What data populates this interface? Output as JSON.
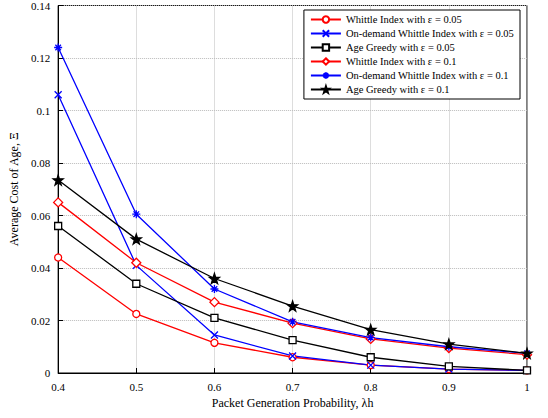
{
  "chart_data": {
    "type": "line",
    "x_label": "Packet Generation Probability, λh",
    "y_label": "Average Cost of Age, Ξ",
    "x": [
      0.4,
      0.5,
      0.6,
      0.7,
      0.8,
      0.9,
      1
    ],
    "xlim": [
      0.4,
      1
    ],
    "xticks": [
      0.4,
      0.5,
      0.6,
      0.7,
      0.8,
      0.9,
      1
    ],
    "ylim": [
      0,
      0.14
    ],
    "yticks": [
      0,
      0.02,
      0.04,
      0.06,
      0.08,
      0.1,
      0.12,
      0.14
    ],
    "grid": true,
    "legend": "upper right",
    "series": [
      {
        "name": "Whittle Index with ε = 0.05",
        "color": "#ff0000",
        "marker": "circle",
        "line_style": "solid",
        "values": [
          0.044,
          0.0225,
          0.0115,
          0.006,
          0.003,
          0.0015,
          0.001
        ]
      },
      {
        "name": "On-demand Whittle Index with ε = 0.05",
        "color": "#0000ff",
        "marker": "x",
        "line_style": "solid",
        "values": [
          0.106,
          0.041,
          0.0145,
          0.0065,
          0.003,
          0.0015,
          0.001
        ]
      },
      {
        "name": "Age Greedy with ε = 0.05",
        "color": "#000000",
        "marker": "square",
        "line_style": "solid",
        "values": [
          0.056,
          0.034,
          0.021,
          0.0125,
          0.006,
          0.0025,
          0.001
        ]
      },
      {
        "name": "Whittle Index with ε = 0.1",
        "color": "#ff0000",
        "marker": "diamond",
        "line_style": "solid",
        "values": [
          0.065,
          0.042,
          0.027,
          0.019,
          0.013,
          0.0095,
          0.007
        ]
      },
      {
        "name": "On-demand Whittle Index with ε = 0.1",
        "color": "#0000ff",
        "marker": "asterisk",
        "line_style": "solid",
        "values": [
          0.124,
          0.0605,
          0.032,
          0.0195,
          0.0135,
          0.01,
          0.0075
        ]
      },
      {
        "name": "Age Greedy with ε = 0.1",
        "color": "#000000",
        "marker": "star",
        "line_style": "solid",
        "values": [
          0.0735,
          0.051,
          0.036,
          0.0255,
          0.0165,
          0.011,
          0.0075
        ]
      }
    ]
  }
}
